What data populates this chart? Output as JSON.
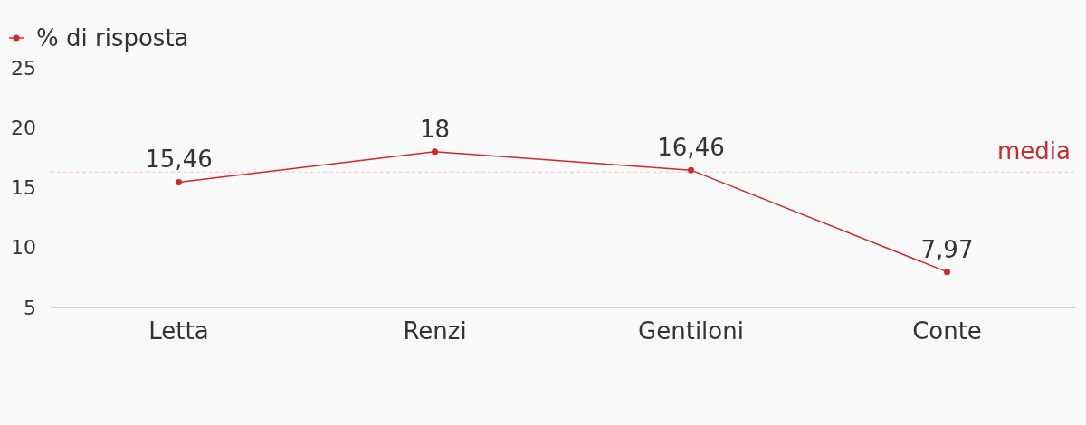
{
  "chart_data": {
    "type": "line",
    "categories": [
      "Letta",
      "Renzi",
      "Gentiloni",
      "Conte"
    ],
    "series": [
      {
        "name": "% di risposta",
        "color": "#cc2a2f",
        "values": [
          15.46,
          18,
          16.46,
          7.97
        ],
        "value_labels": [
          "15,46",
          "18",
          "16,46",
          "7,97"
        ]
      }
    ],
    "ylim": [
      5,
      25
    ],
    "yticks": [
      5,
      10,
      15,
      20,
      25
    ],
    "grid": false,
    "legend": "top left",
    "marker": "circle",
    "line_style": "solid",
    "ref_lines": [
      {
        "axis": "y",
        "value": 16.3,
        "label": "media",
        "color": "#f7c5c5",
        "line_style": "dashed"
      }
    ]
  }
}
